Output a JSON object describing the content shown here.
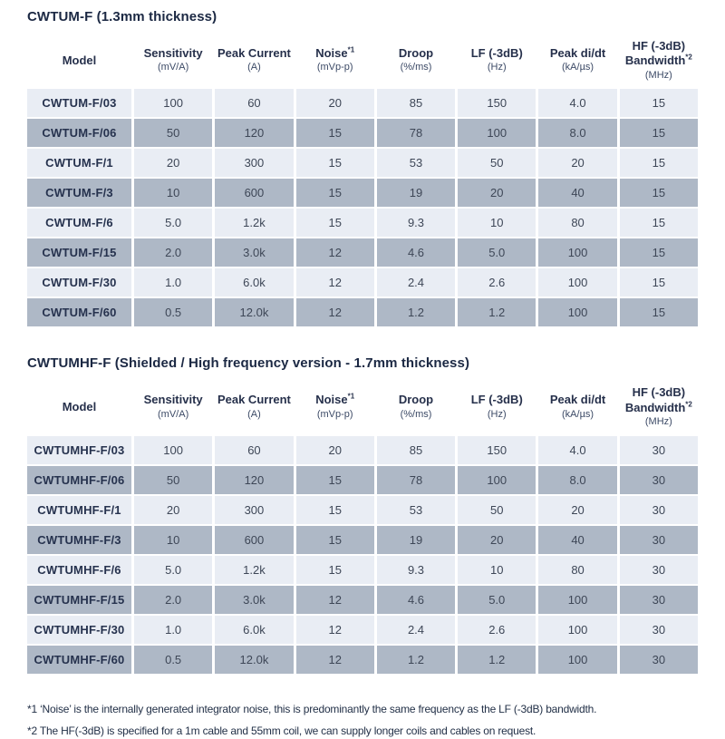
{
  "colors": {
    "row_light": "#e9edf4",
    "row_dark": "#aeb8c6",
    "title_text": "#1b2843",
    "header_text": "#26304b",
    "cell_text": "#3e4757",
    "footnote_text": "#223047",
    "background": "#ffffff"
  },
  "tables": [
    {
      "title": "CWTUM-F (1.3mm thickness)",
      "columns": [
        {
          "label": "Model",
          "sup": "",
          "unit": ""
        },
        {
          "label": "Sensitivity",
          "sup": "",
          "unit": "(mV/A)"
        },
        {
          "label": "Peak Current",
          "sup": "",
          "unit": "(A)"
        },
        {
          "label": "Noise",
          "sup": "*1",
          "unit": "(mVp-p)"
        },
        {
          "label": "Droop",
          "sup": "",
          "unit": "(%/ms)"
        },
        {
          "label": "LF (-3dB)",
          "sup": "",
          "unit": "(Hz)"
        },
        {
          "label": "Peak di/dt",
          "sup": "",
          "unit": "(kA/µs)"
        },
        {
          "label": "HF (-3dB) Bandwidth",
          "sup": "*2",
          "unit": "(MHz)"
        }
      ],
      "rows": [
        [
          "CWTUM-F/03",
          "100",
          "60",
          "20",
          "85",
          "150",
          "4.0",
          "15"
        ],
        [
          "CWTUM-F/06",
          "50",
          "120",
          "15",
          "78",
          "100",
          "8.0",
          "15"
        ],
        [
          "CWTUM-F/1",
          "20",
          "300",
          "15",
          "53",
          "50",
          "20",
          "15"
        ],
        [
          "CWTUM-F/3",
          "10",
          "600",
          "15",
          "19",
          "20",
          "40",
          "15"
        ],
        [
          "CWTUM-F/6",
          "5.0",
          "1.2k",
          "15",
          "9.3",
          "10",
          "80",
          "15"
        ],
        [
          "CWTUM-F/15",
          "2.0",
          "3.0k",
          "12",
          "4.6",
          "5.0",
          "100",
          "15"
        ],
        [
          "CWTUM-F/30",
          "1.0",
          "6.0k",
          "12",
          "2.4",
          "2.6",
          "100",
          "15"
        ],
        [
          "CWTUM-F/60",
          "0.5",
          "12.0k",
          "12",
          "1.2",
          "1.2",
          "100",
          "15"
        ]
      ]
    },
    {
      "title": "CWTUMHF-F (Shielded / High frequency version - 1.7mm thickness)",
      "columns": [
        {
          "label": "Model",
          "sup": "",
          "unit": ""
        },
        {
          "label": "Sensitivity",
          "sup": "",
          "unit": "(mV/A)"
        },
        {
          "label": "Peak Current",
          "sup": "",
          "unit": "(A)"
        },
        {
          "label": "Noise",
          "sup": "*1",
          "unit": "(mVp-p)"
        },
        {
          "label": "Droop",
          "sup": "",
          "unit": "(%/ms)"
        },
        {
          "label": "LF (-3dB)",
          "sup": "",
          "unit": "(Hz)"
        },
        {
          "label": "Peak di/dt",
          "sup": "",
          "unit": "(kA/µs)"
        },
        {
          "label": "HF (-3dB) Bandwidth",
          "sup": "*2",
          "unit": "(MHz)"
        }
      ],
      "rows": [
        [
          "CWTUMHF-F/03",
          "100",
          "60",
          "20",
          "85",
          "150",
          "4.0",
          "30"
        ],
        [
          "CWTUMHF-F/06",
          "50",
          "120",
          "15",
          "78",
          "100",
          "8.0",
          "30"
        ],
        [
          "CWTUMHF-F/1",
          "20",
          "300",
          "15",
          "53",
          "50",
          "20",
          "30"
        ],
        [
          "CWTUMHF-F/3",
          "10",
          "600",
          "15",
          "19",
          "20",
          "40",
          "30"
        ],
        [
          "CWTUMHF-F/6",
          "5.0",
          "1.2k",
          "15",
          "9.3",
          "10",
          "80",
          "30"
        ],
        [
          "CWTUMHF-F/15",
          "2.0",
          "3.0k",
          "12",
          "4.6",
          "5.0",
          "100",
          "30"
        ],
        [
          "CWTUMHF-F/30",
          "1.0",
          "6.0k",
          "12",
          "2.4",
          "2.6",
          "100",
          "30"
        ],
        [
          "CWTUMHF-F/60",
          "0.5",
          "12.0k",
          "12",
          "1.2",
          "1.2",
          "100",
          "30"
        ]
      ]
    }
  ],
  "footnotes": [
    "*1 ‘Noise’ is the internally generated integrator noise, this is predominantly the same frequency as the LF (-3dB) bandwidth.",
    "*2 The HF(-3dB) is specified for a 1m cable and 55mm coil, we can supply longer coils and cables on request."
  ]
}
